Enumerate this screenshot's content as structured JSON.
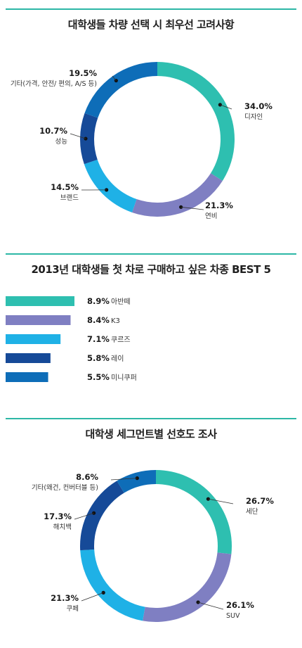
{
  "colors": {
    "teal": "#2ebfb0",
    "purple": "#7f7fc2",
    "sky": "#1fb1e6",
    "navy": "#164a98",
    "blue": "#0e6db8",
    "rule": "#2db7a6"
  },
  "chart_data": [
    {
      "type": "pie",
      "variant": "donut",
      "title": "대학생들 차량 선택 시 최우선 고려사항",
      "slices": [
        {
          "label": "디자인",
          "value": 34.0,
          "value_text": "34.0%",
          "color": "#2ebfb0"
        },
        {
          "label": "연비",
          "value": 21.3,
          "value_text": "21.3%",
          "color": "#7f7fc2"
        },
        {
          "label": "브랜드",
          "value": 14.5,
          "value_text": "14.5%",
          "color": "#1fb1e6"
        },
        {
          "label": "성능",
          "value": 10.7,
          "value_text": "10.7%",
          "color": "#164a98"
        },
        {
          "label": "기타(가격, 안전/ 편의, A/S 등)",
          "value": 19.5,
          "value_text": "19.5%",
          "color": "#0e6db8"
        }
      ]
    },
    {
      "type": "bar",
      "orientation": "horizontal",
      "title": "2013년 대학생들 첫 차로 구매하고 싶은 차종 BEST 5",
      "categories": [
        "아반떼",
        "K3",
        "쿠르즈",
        "레이",
        "미니쿠퍼"
      ],
      "values": [
        8.9,
        8.4,
        7.1,
        5.8,
        5.5
      ],
      "value_texts": [
        "8.9%",
        "8.4%",
        "7.1%",
        "5.8%",
        "5.5%"
      ],
      "colors": [
        "#2ebfb0",
        "#7f7fc2",
        "#1fb1e6",
        "#164a98",
        "#0e6db8"
      ]
    },
    {
      "type": "pie",
      "variant": "donut",
      "title": "대학생 세그먼트별 선호도 조사",
      "slices": [
        {
          "label": "세단",
          "value": 26.7,
          "value_text": "26.7%",
          "color": "#2ebfb0"
        },
        {
          "label": "SUV",
          "value": 26.1,
          "value_text": "26.1%",
          "color": "#7f7fc2"
        },
        {
          "label": "쿠페",
          "value": 21.3,
          "value_text": "21.3%",
          "color": "#1fb1e6"
        },
        {
          "label": "해치백",
          "value": 17.3,
          "value_text": "17.3%",
          "color": "#164a98"
        },
        {
          "label": "기타(왜건, 컨버터블 등)",
          "value": 8.6,
          "value_text": "8.6%",
          "color": "#0e6db8"
        }
      ]
    }
  ]
}
